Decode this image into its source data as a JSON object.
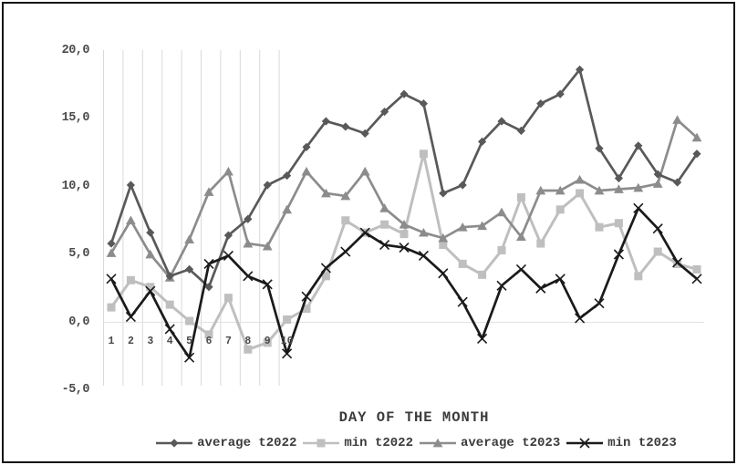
{
  "figure": {
    "x_axis_title": "DAY OF THE MONTH",
    "y_tick_labels": [
      "-5,0",
      "0,0",
      "5,0",
      "10,0",
      "15,0",
      "20,0"
    ],
    "x_tick_labels": [
      "1",
      "2",
      "3",
      "4",
      "5",
      "6",
      "7",
      "8",
      "9",
      "10"
    ]
  },
  "chart_data": {
    "type": "line",
    "title": "",
    "xlabel": "DAY OF THE MONTH",
    "ylabel": "",
    "ylim": [
      -5,
      20
    ],
    "y_tick_values": [
      -5,
      0,
      5,
      10,
      15,
      20
    ],
    "y_ticks": [
      "-5,0",
      "0,0",
      "5,0",
      "10,0",
      "15,0",
      "20,0"
    ],
    "x": [
      1,
      2,
      3,
      4,
      5,
      6,
      7,
      8,
      9,
      10,
      11,
      12,
      13,
      14,
      15,
      16,
      17,
      18,
      19,
      20,
      21,
      22,
      23,
      24,
      25,
      26,
      27,
      28,
      29,
      30,
      31
    ],
    "x_ticks_shown": [
      "1",
      "2",
      "3",
      "4",
      "5",
      "6",
      "7",
      "8",
      "9",
      "10"
    ],
    "grid": "vertical gridlines for first 10 days only; light zero line",
    "legend_position": "bottom",
    "grid_color": "#d9d9d9",
    "series": [
      {
        "name": "average t2022",
        "marker": "diamond",
        "color": "#595959",
        "values": [
          5.8,
          10.1,
          6.6,
          3.4,
          3.9,
          2.6,
          6.4,
          7.6,
          10.1,
          10.8,
          12.9,
          14.8,
          14.4,
          13.9,
          15.5,
          16.8,
          16.1,
          9.5,
          10.1,
          13.3,
          14.8,
          14.1,
          16.1,
          16.8,
          18.6,
          12.8,
          10.6,
          13.0,
          10.9,
          10.3,
          12.4
        ]
      },
      {
        "name": "min t2022",
        "marker": "square",
        "color": "#bfbfbf",
        "values": [
          1.1,
          3.1,
          2.6,
          1.3,
          0.1,
          -0.9,
          1.8,
          -2.0,
          -1.5,
          0.2,
          1.0,
          3.4,
          7.5,
          6.6,
          7.2,
          6.5,
          12.4,
          5.7,
          4.3,
          3.5,
          5.3,
          9.2,
          5.8,
          8.3,
          9.5,
          7.0,
          7.3,
          3.4,
          5.2,
          4.3,
          3.9
        ]
      },
      {
        "name": "average t2023",
        "marker": "triangle",
        "color": "#8c8c8c",
        "values": [
          5.1,
          7.5,
          5.0,
          3.3,
          6.1,
          9.6,
          11.1,
          5.8,
          5.6,
          8.3,
          11.1,
          9.5,
          9.3,
          11.1,
          8.4,
          7.2,
          6.6,
          6.2,
          7.0,
          7.1,
          8.1,
          6.3,
          9.7,
          9.7,
          10.5,
          9.7,
          9.8,
          9.9,
          10.2,
          14.9,
          13.6
        ]
      },
      {
        "name": "min t2023",
        "marker": "x",
        "color": "#1a1a1a",
        "values": [
          3.2,
          0.4,
          2.3,
          -0.5,
          -2.6,
          4.3,
          4.9,
          3.4,
          2.8,
          -2.3,
          1.9,
          4.0,
          5.2,
          6.6,
          5.7,
          5.5,
          4.9,
          3.6,
          1.5,
          -1.2,
          2.7,
          3.9,
          2.5,
          3.2,
          0.3,
          1.4,
          5.0,
          8.4,
          6.9,
          4.4,
          3.2
        ]
      }
    ]
  }
}
